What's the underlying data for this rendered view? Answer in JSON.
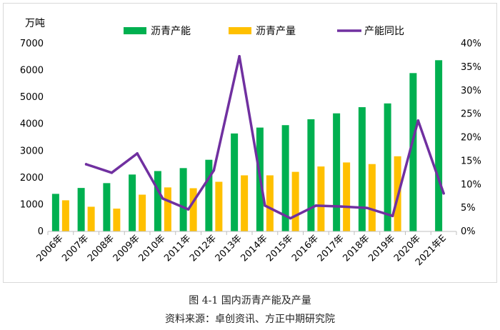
{
  "chart_data": {
    "type": "bar+line",
    "categories": [
      "2006年",
      "2007年",
      "2008年",
      "2009年",
      "2010年",
      "2011年",
      "2012年",
      "2013年",
      "2014年",
      "2015年",
      "2016年",
      "2017年",
      "2018年",
      "2019年",
      "2020年",
      "2021年E"
    ],
    "series": [
      {
        "name": "沥青产能",
        "type": "bar",
        "axis": "left",
        "color": "#00b050",
        "values": [
          1400,
          1620,
          1800,
          2120,
          2250,
          2360,
          2670,
          3650,
          3870,
          3960,
          4180,
          4400,
          4630,
          4770,
          5900,
          6380
        ]
      },
      {
        "name": "沥青产量",
        "type": "bar",
        "axis": "left",
        "color": "#ffc000",
        "values": [
          1160,
          920,
          850,
          1370,
          1640,
          1610,
          1850,
          2090,
          2090,
          2220,
          2420,
          2570,
          2510,
          2800,
          null,
          null
        ]
      },
      {
        "name": "产能同比",
        "type": "line",
        "axis": "right",
        "color": "#7030a0",
        "values": [
          null,
          14.3,
          12.5,
          16.6,
          7.0,
          4.7,
          13.0,
          37.3,
          5.5,
          2.8,
          5.5,
          5.3,
          5.0,
          3.3,
          23.6,
          8.1
        ]
      }
    ],
    "y_left": {
      "unit_label": "万吨",
      "min": 0,
      "max": 7000,
      "step": 1000,
      "ticks": [
        "0",
        "1000",
        "2000",
        "3000",
        "4000",
        "5000",
        "6000",
        "7000"
      ]
    },
    "y_right": {
      "min": 0,
      "max": 40,
      "step": 5,
      "ticks": [
        "0%",
        "5%",
        "10%",
        "15%",
        "20%",
        "25%",
        "30%",
        "35%",
        "40%"
      ]
    },
    "legend_position": "top",
    "grid": false
  },
  "figure": {
    "title": "图 4-1 国内沥青产能及产量",
    "source": "资料来源：卓创资讯、方正中期研究院"
  }
}
